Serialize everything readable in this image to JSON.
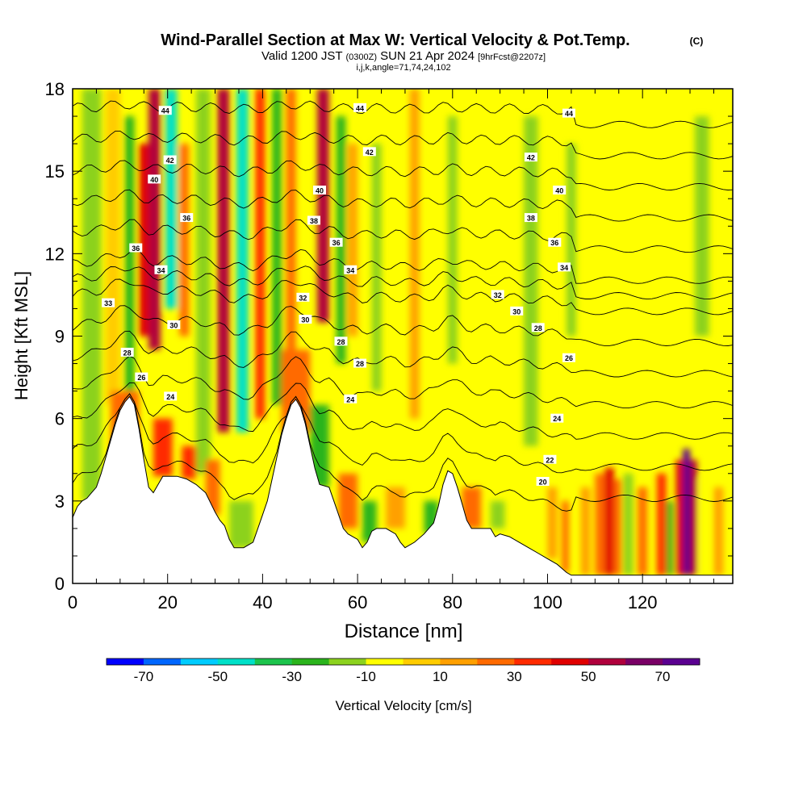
{
  "title": {
    "line1": "Wind-Parallel Section at Max W: Vertical Velocity & Pot.Temp.",
    "copyright": "(C)",
    "line2_main": "Valid 1200 JST",
    "line2_utc": "(0300Z)",
    "line2_date": "SUN 21 Apr 2024",
    "line2_fcst": "[9hrFcst@2207z]",
    "line3": "i,j,k,angle=71,74,24,102"
  },
  "chart_data": {
    "type": "heatmap",
    "xlabel": "Distance [nm]",
    "ylabel": "Height [Kft MSL]",
    "xlim": [
      0,
      139
    ],
    "ylim": [
      0,
      18
    ],
    "x_ticks": [
      0,
      20,
      40,
      60,
      80,
      100,
      120
    ],
    "y_ticks": [
      0,
      3,
      6,
      9,
      12,
      15,
      18
    ],
    "x_tick_labels": [
      "0",
      "20",
      "40",
      "60",
      "80",
      "100",
      "120"
    ],
    "y_tick_labels": [
      "0",
      "3",
      "6",
      "9",
      "12",
      "15",
      "18"
    ],
    "colorbar": {
      "label": "Vertical Velocity [cm/s]",
      "min": -80,
      "max": 80,
      "step": 10,
      "tick_values": [
        -70,
        -50,
        -30,
        -10,
        10,
        30,
        50,
        70
      ],
      "tick_labels": [
        "-70",
        "-50",
        "-30",
        "-10",
        "10",
        "30",
        "50",
        "70"
      ],
      "colors": [
        "#0000ff",
        "#0066ff",
        "#00ccff",
        "#00e0c8",
        "#1cc44c",
        "#2ab41c",
        "#8cd21e",
        "#ffff00",
        "#ffcc00",
        "#ffa000",
        "#ff6a00",
        "#ff2a00",
        "#e00000",
        "#b0003c",
        "#7a0066",
        "#5a0090"
      ]
    },
    "terrain": [
      [
        0,
        2.4
      ],
      [
        1,
        2.8
      ],
      [
        2,
        3.0
      ],
      [
        3,
        3.1
      ],
      [
        4,
        3.3
      ],
      [
        5,
        3.5
      ],
      [
        6,
        4.0
      ],
      [
        7,
        4.6
      ],
      [
        8,
        5.2
      ],
      [
        9,
        5.8
      ],
      [
        10,
        6.3
      ],
      [
        11,
        6.6
      ],
      [
        12,
        6.8
      ],
      [
        13,
        6.5
      ],
      [
        14,
        5.6
      ],
      [
        15,
        4.5
      ],
      [
        16,
        3.5
      ],
      [
        17,
        3.3
      ],
      [
        18,
        3.6
      ],
      [
        19,
        3.9
      ],
      [
        20,
        3.9
      ],
      [
        22,
        3.9
      ],
      [
        24,
        3.8
      ],
      [
        26,
        3.6
      ],
      [
        28,
        3.3
      ],
      [
        30,
        2.6
      ],
      [
        31,
        2.3
      ],
      [
        32,
        2.1
      ],
      [
        33,
        1.6
      ],
      [
        34,
        1.3
      ],
      [
        36,
        1.3
      ],
      [
        38,
        1.5
      ],
      [
        39,
        2.0
      ],
      [
        40,
        2.5
      ],
      [
        41,
        3.0
      ],
      [
        42,
        3.8
      ],
      [
        43,
        4.6
      ],
      [
        44,
        5.4
      ],
      [
        45,
        6.0
      ],
      [
        46,
        6.5
      ],
      [
        47,
        6.7
      ],
      [
        48,
        6.4
      ],
      [
        49,
        5.8
      ],
      [
        50,
        5.0
      ],
      [
        51,
        4.2
      ],
      [
        52,
        3.6
      ],
      [
        54,
        3.5
      ],
      [
        55,
        3.0
      ],
      [
        56,
        2.5
      ],
      [
        57,
        2.0
      ],
      [
        58,
        1.8
      ],
      [
        60,
        1.6
      ],
      [
        61,
        1.3
      ],
      [
        62,
        1.5
      ],
      [
        63,
        1.9
      ],
      [
        64,
        2.0
      ],
      [
        66,
        2.0
      ],
      [
        68,
        1.8
      ],
      [
        69,
        1.5
      ],
      [
        70,
        1.3
      ],
      [
        72,
        1.5
      ],
      [
        74,
        1.8
      ],
      [
        76,
        2.2
      ],
      [
        77,
        2.8
      ],
      [
        78,
        3.6
      ],
      [
        79,
        4.1
      ],
      [
        80,
        4.0
      ],
      [
        81,
        3.5
      ],
      [
        82,
        2.9
      ],
      [
        83,
        2.3
      ],
      [
        84,
        2.0
      ],
      [
        86,
        2.0
      ],
      [
        88,
        2.0
      ],
      [
        89,
        1.7
      ],
      [
        90,
        1.8
      ],
      [
        92,
        1.7
      ],
      [
        94,
        1.5
      ],
      [
        96,
        1.3
      ],
      [
        98,
        1.1
      ],
      [
        100,
        0.9
      ],
      [
        102,
        0.7
      ],
      [
        104,
        0.4
      ],
      [
        105,
        0.3
      ],
      [
        139,
        0.3
      ]
    ],
    "theta_contours": [
      {
        "value": 20,
        "label": "20"
      },
      {
        "value": 22,
        "label": "22"
      },
      {
        "value": 24,
        "label": "24"
      },
      {
        "value": 26,
        "label": "26"
      },
      {
        "value": 28,
        "label": "28"
      },
      {
        "value": 30,
        "label": "30"
      },
      {
        "value": 32,
        "label": "32"
      },
      {
        "value": 33,
        "label": "33"
      },
      {
        "value": 34,
        "label": "34"
      },
      {
        "value": 36,
        "label": "36"
      },
      {
        "value": 38,
        "label": "38"
      },
      {
        "value": 40,
        "label": "40"
      },
      {
        "value": 42,
        "label": "42"
      },
      {
        "value": 44,
        "label": "44"
      }
    ],
    "contour_labels": [
      {
        "text": "44",
        "x": 19.5,
        "y": 17.2
      },
      {
        "text": "42",
        "x": 20.5,
        "y": 15.4
      },
      {
        "text": "40",
        "x": 17.2,
        "y": 14.7
      },
      {
        "text": "36",
        "x": 24.0,
        "y": 13.3
      },
      {
        "text": "36",
        "x": 13.3,
        "y": 12.2
      },
      {
        "text": "34",
        "x": 18.6,
        "y": 11.4
      },
      {
        "text": "33",
        "x": 7.5,
        "y": 10.2
      },
      {
        "text": "30",
        "x": 21.3,
        "y": 9.4
      },
      {
        "text": "28",
        "x": 11.5,
        "y": 8.4
      },
      {
        "text": "26",
        "x": 14.5,
        "y": 7.5
      },
      {
        "text": "24",
        "x": 20.6,
        "y": 6.8
      },
      {
        "text": "44",
        "x": 60.5,
        "y": 17.3
      },
      {
        "text": "42",
        "x": 62.5,
        "y": 15.7
      },
      {
        "text": "40",
        "x": 52.0,
        "y": 14.3
      },
      {
        "text": "38",
        "x": 50.8,
        "y": 13.2
      },
      {
        "text": "36",
        "x": 55.5,
        "y": 12.4
      },
      {
        "text": "34",
        "x": 58.5,
        "y": 11.4
      },
      {
        "text": "32",
        "x": 48.5,
        "y": 10.4
      },
      {
        "text": "30",
        "x": 49.0,
        "y": 9.6
      },
      {
        "text": "28",
        "x": 56.5,
        "y": 8.8
      },
      {
        "text": "28",
        "x": 60.5,
        "y": 8.0
      },
      {
        "text": "24",
        "x": 58.5,
        "y": 6.7
      },
      {
        "text": "44",
        "x": 104.5,
        "y": 17.1
      },
      {
        "text": "42",
        "x": 96.5,
        "y": 15.5
      },
      {
        "text": "40",
        "x": 102.5,
        "y": 14.3
      },
      {
        "text": "38",
        "x": 96.5,
        "y": 13.3
      },
      {
        "text": "36",
        "x": 101.5,
        "y": 12.4
      },
      {
        "text": "34",
        "x": 103.5,
        "y": 11.5
      },
      {
        "text": "32",
        "x": 89.5,
        "y": 10.5
      },
      {
        "text": "30",
        "x": 93.5,
        "y": 9.9
      },
      {
        "text": "28",
        "x": 98.0,
        "y": 9.3
      },
      {
        "text": "26",
        "x": 104.5,
        "y": 8.2
      },
      {
        "text": "24",
        "x": 102.0,
        "y": 6.0
      },
      {
        "text": "22",
        "x": 100.5,
        "y": 4.5
      },
      {
        "text": "20",
        "x": 99.0,
        "y": 3.7
      }
    ],
    "w_cells": [
      {
        "x": 2,
        "w": 4,
        "ybot": 3.0,
        "ytop": 18,
        "value": -15
      },
      {
        "x": 7,
        "w": 3,
        "ybot": 6.5,
        "ytop": 18,
        "value": 5
      },
      {
        "x": 11,
        "w": 2,
        "ybot": 7.0,
        "ytop": 17,
        "value": -25
      },
      {
        "x": 14,
        "w": 2,
        "ybot": 9.0,
        "ytop": 16,
        "value": 40
      },
      {
        "x": 16,
        "w": 2.5,
        "ybot": 8.5,
        "ytop": 18,
        "value": 55
      },
      {
        "x": 19.5,
        "w": 2.5,
        "ybot": 10.0,
        "ytop": 18,
        "value": -45
      },
      {
        "x": 22.5,
        "w": 2,
        "ybot": 9.0,
        "ytop": 16,
        "value": 20
      },
      {
        "x": 26,
        "w": 3,
        "ybot": 4.0,
        "ytop": 18,
        "value": -15
      },
      {
        "x": 30.5,
        "w": 2.5,
        "ybot": 5.5,
        "ytop": 18,
        "value": 50
      },
      {
        "x": 34.5,
        "w": 2.5,
        "ybot": 5.5,
        "ytop": 18,
        "value": -45
      },
      {
        "x": 38.5,
        "w": 2,
        "ybot": 6.0,
        "ytop": 18,
        "value": 35
      },
      {
        "x": 42,
        "w": 2,
        "ybot": 6.5,
        "ytop": 18,
        "value": -25
      },
      {
        "x": 45,
        "w": 2,
        "ybot": 7.0,
        "ytop": 18,
        "value": 25
      },
      {
        "x": 51.5,
        "w": 2.5,
        "ybot": 9.5,
        "ytop": 18,
        "value": 55
      },
      {
        "x": 55.5,
        "w": 2,
        "ybot": 8.0,
        "ytop": 17,
        "value": -25
      },
      {
        "x": 58,
        "w": 2,
        "ybot": 9.0,
        "ytop": 16,
        "value": 15
      },
      {
        "x": 63,
        "w": 2,
        "ybot": 7.0,
        "ytop": 16,
        "value": -15
      },
      {
        "x": 71,
        "w": 2,
        "ybot": 6.0,
        "ytop": 18,
        "value": 15
      },
      {
        "x": 79,
        "w": 2,
        "ybot": 8.0,
        "ytop": 17,
        "value": -15
      },
      {
        "x": 86,
        "w": 2,
        "ybot": 7.0,
        "ytop": 15,
        "value": -5
      },
      {
        "x": 95,
        "w": 3,
        "ybot": 5.0,
        "ytop": 17,
        "value": -15
      },
      {
        "x": 104,
        "w": 2,
        "ybot": 9.0,
        "ytop": 16,
        "value": -15
      },
      {
        "x": 112,
        "w": 3,
        "ybot": 10.0,
        "ytop": 17,
        "value": -5
      },
      {
        "x": 121,
        "w": 2,
        "ybot": 8.0,
        "ytop": 16,
        "value": -5
      },
      {
        "x": 131,
        "w": 3,
        "ybot": 9.0,
        "ytop": 17,
        "value": -15
      },
      {
        "x": 8,
        "w": 6,
        "ybot": 4.0,
        "ytop": 7.0,
        "value": 25
      },
      {
        "x": 17,
        "w": 4,
        "ybot": 3.9,
        "ytop": 6.0,
        "value": 30
      },
      {
        "x": 23,
        "w": 3,
        "ybot": 3.8,
        "ytop": 5.0,
        "value": 35
      },
      {
        "x": 28,
        "w": 3,
        "ybot": 2.5,
        "ytop": 4.5,
        "value": 20
      },
      {
        "x": 33,
        "w": 5,
        "ybot": 1.3,
        "ytop": 3.0,
        "value": -15
      },
      {
        "x": 44,
        "w": 6,
        "ybot": 5.5,
        "ytop": 8.5,
        "value": 25
      },
      {
        "x": 50,
        "w": 4,
        "ybot": 3.5,
        "ytop": 6.5,
        "value": -25
      },
      {
        "x": 56,
        "w": 4,
        "ybot": 2.0,
        "ytop": 4.0,
        "value": 25
      },
      {
        "x": 61,
        "w": 3,
        "ybot": 1.5,
        "ytop": 3.0,
        "value": -25
      },
      {
        "x": 66,
        "w": 4,
        "ybot": 2.0,
        "ytop": 3.5,
        "value": 15
      },
      {
        "x": 74,
        "w": 3,
        "ybot": 1.8,
        "ytop": 3.0,
        "value": -25
      },
      {
        "x": 82,
        "w": 4,
        "ybot": 2.0,
        "ytop": 3.5,
        "value": 25
      },
      {
        "x": 88,
        "w": 3,
        "ybot": 2.0,
        "ytop": 3.0,
        "value": -15
      },
      {
        "x": 100,
        "w": 2,
        "ybot": 0.9,
        "ytop": 3.5,
        "value": 15
      },
      {
        "x": 103,
        "w": 1.5,
        "ybot": 0.4,
        "ytop": 3.0,
        "value": 25
      },
      {
        "x": 107,
        "w": 2,
        "ybot": 0.3,
        "ytop": 3.5,
        "value": 15
      },
      {
        "x": 110,
        "w": 2,
        "ybot": 0.3,
        "ytop": 4.0,
        "value": 25
      },
      {
        "x": 112,
        "w": 2,
        "ybot": 0.3,
        "ytop": 4.2,
        "value": 45
      },
      {
        "x": 114,
        "w": 1.5,
        "ybot": 0.3,
        "ytop": 3.8,
        "value": 25
      },
      {
        "x": 116,
        "w": 2,
        "ybot": 0.3,
        "ytop": 4.0,
        "value": -15
      },
      {
        "x": 119,
        "w": 2,
        "ybot": 0.3,
        "ytop": 3.5,
        "value": 25
      },
      {
        "x": 123,
        "w": 2,
        "ybot": 0.3,
        "ytop": 4.0,
        "value": 35
      },
      {
        "x": 125,
        "w": 1.5,
        "ybot": 0.3,
        "ytop": 3.0,
        "value": -25
      },
      {
        "x": 127,
        "w": 1.5,
        "ybot": 0.3,
        "ytop": 4.5,
        "value": 45
      },
      {
        "x": 128.5,
        "w": 1.5,
        "ybot": 0.3,
        "ytop": 4.9,
        "value": 75
      },
      {
        "x": 130,
        "w": 1.5,
        "ybot": 0.3,
        "ytop": 4.5,
        "value": 55
      },
      {
        "x": 132,
        "w": 2,
        "ybot": 0.3,
        "ytop": 3.8,
        "value": -5
      },
      {
        "x": 135,
        "w": 2,
        "ybot": 0.3,
        "ytop": 3.5,
        "value": 15
      }
    ]
  }
}
